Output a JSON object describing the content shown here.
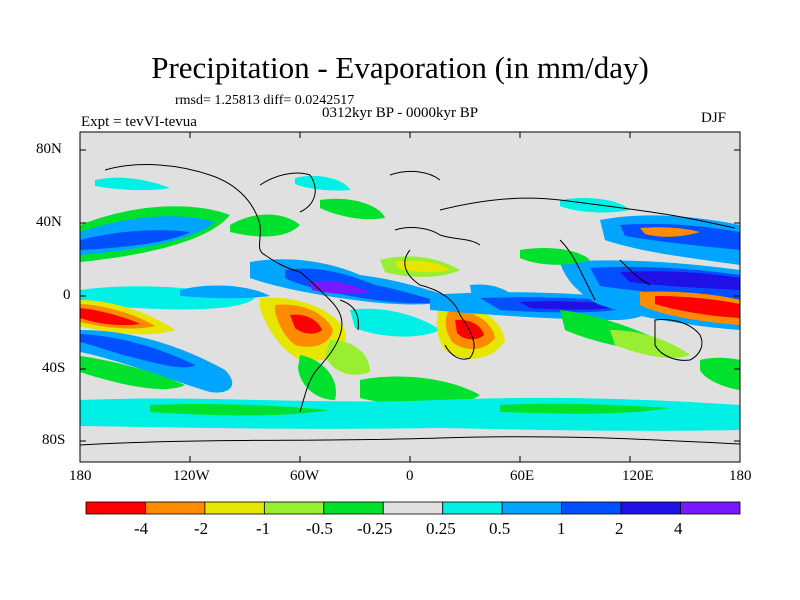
{
  "title": "Precipitation - Evaporation (in mm/day)",
  "stats_line": "rmsd= 1.25813 diff= 0.0242517",
  "period": "0312kyr BP - 0000kyr BP",
  "experiment": "Expt = tevVI-tevua",
  "season": "DJF",
  "lat_ticks": [
    "80N",
    "40N",
    "0",
    "40S",
    "80S"
  ],
  "lon_ticks": [
    "180",
    "120W",
    "60W",
    "0",
    "60E",
    "120E",
    "180"
  ],
  "colorbar": {
    "labels": [
      "-4",
      "-2",
      "-1",
      "-0.5",
      "-0.25",
      "0.25",
      "0.5",
      "1",
      "2",
      "4"
    ],
    "colors": [
      "#ff0000",
      "#ff8c00",
      "#e6e600",
      "#9aee32",
      "#00e12d",
      "#e0e0e0",
      "#00f0e6",
      "#00a5ff",
      "#0050ff",
      "#1e10e6",
      "#7a19ff"
    ]
  },
  "background_color": "#e0e0e0"
}
